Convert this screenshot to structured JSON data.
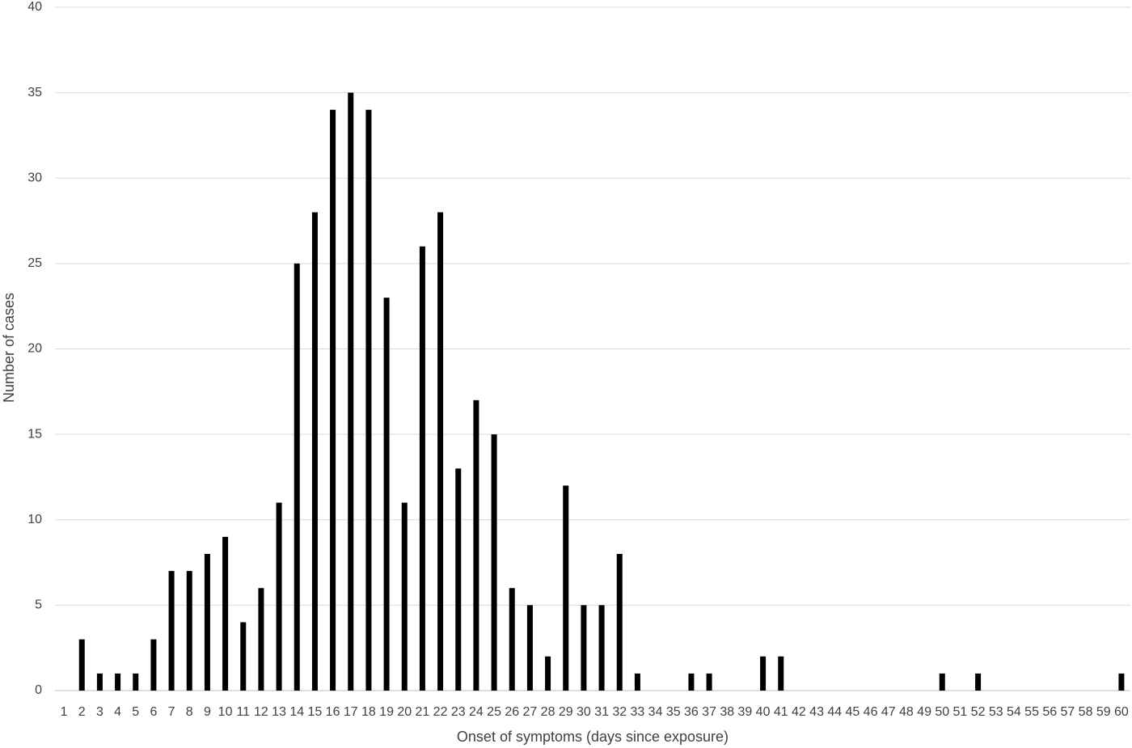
{
  "chart_data": {
    "type": "bar",
    "xlabel": "Onset of symptoms (days since exposure)",
    "ylabel": "Number of cases",
    "categories": [
      "1",
      "2",
      "3",
      "4",
      "5",
      "6",
      "7",
      "8",
      "9",
      "10",
      "11",
      "12",
      "13",
      "14",
      "15",
      "16",
      "17",
      "18",
      "19",
      "20",
      "21",
      "22",
      "23",
      "24",
      "25",
      "26",
      "27",
      "28",
      "29",
      "30",
      "31",
      "32",
      "33",
      "34",
      "35",
      "36",
      "37",
      "38",
      "39",
      "40",
      "41",
      "42",
      "43",
      "44",
      "45",
      "46",
      "47",
      "48",
      "49",
      "50",
      "51",
      "52",
      "53",
      "54",
      "55",
      "56",
      "57",
      "58",
      "59",
      "60"
    ],
    "values": [
      0,
      3,
      1,
      1,
      1,
      3,
      7,
      7,
      8,
      9,
      4,
      6,
      11,
      25,
      28,
      34,
      35,
      34,
      23,
      11,
      26,
      28,
      13,
      17,
      15,
      6,
      5,
      2,
      12,
      5,
      5,
      8,
      1,
      0,
      0,
      1,
      1,
      0,
      0,
      2,
      2,
      0,
      0,
      0,
      0,
      0,
      0,
      0,
      0,
      1,
      0,
      1,
      0,
      0,
      0,
      0,
      0,
      0,
      0,
      1
    ],
    "color": "#000000",
    "ylim": [
      0,
      40
    ],
    "yticks": [
      0,
      5,
      10,
      15,
      20,
      25,
      30,
      35,
      40
    ],
    "grid": true
  }
}
